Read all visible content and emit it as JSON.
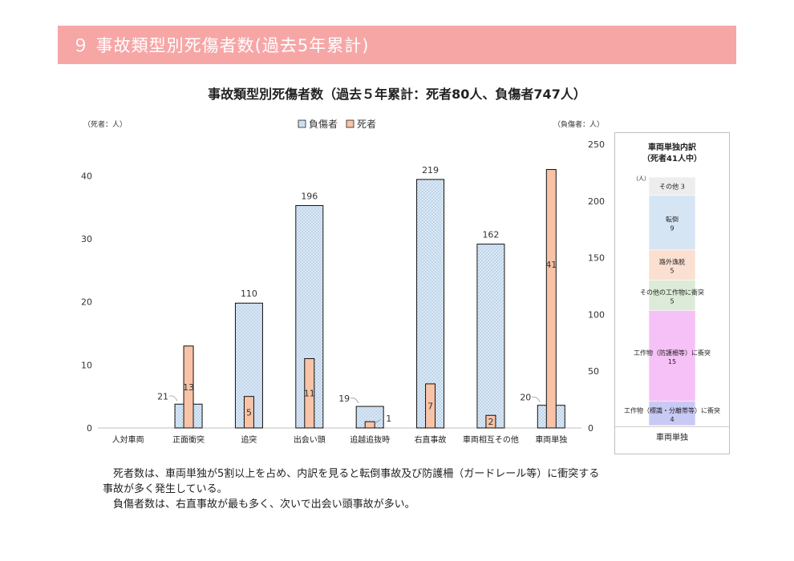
{
  "header": {
    "banner_title": "９ 事故類型別死傷者数(過去5年累計)"
  },
  "chart_data": [
    {
      "type": "bar",
      "title": "事故類型別死傷者数（過去５年累計：死者80人、負傷者747人）",
      "left_axis_unit": "（死者：人）",
      "right_axis_unit": "（負傷者：人）",
      "categories": [
        "人対車両",
        "正面衝突",
        "追突",
        "出会い頭",
        "追越追抜時",
        "右直事故",
        "車両相互その他",
        "車両単独"
      ],
      "series": [
        {
          "name": "負傷者",
          "axis": "right",
          "values": [
            null,
            21,
            110,
            196,
            19,
            219,
            162,
            20
          ],
          "color": "#dbeaf7"
        },
        {
          "name": "死者",
          "axis": "left",
          "values": [
            null,
            13,
            5,
            11,
            1,
            7,
            2,
            41
          ],
          "color": "#f8c3a6"
        }
      ],
      "left_ylim": [
        0,
        45
      ],
      "left_ticks": [
        0,
        10,
        20,
        30,
        40
      ],
      "right_ylim": [
        0,
        250
      ],
      "right_ticks": [
        0,
        50,
        100,
        150,
        200,
        250
      ],
      "legend_position": "top-center",
      "grid": false
    },
    {
      "type": "bar",
      "stacked": true,
      "title_line1": "車両単独内訳",
      "title_line2": "（死者41人中）",
      "unit": "（人）",
      "category": "車両単独",
      "segments": [
        {
          "label": "工作物（標識・分離帯等）に衝突",
          "value": 4,
          "color": "#c9c9f5"
        },
        {
          "label": "工作物（防護柵等）に衝突",
          "value": 15,
          "color": "#f6c1f6"
        },
        {
          "label": "その他の工作物に衝突",
          "value": 5,
          "color": "#dcebd7"
        },
        {
          "label": "路外逸脱",
          "value": 5,
          "color": "#fbe0d2"
        },
        {
          "label": "転倒",
          "value": 9,
          "color": "#d6e5f4"
        },
        {
          "label": "その他",
          "value": 3,
          "color": "#ededed"
        }
      ]
    }
  ],
  "description": {
    "line1": "死者数は、車両単独が5割以上を占め、内訳を見ると転倒事故及び防護柵（ガードレール等）に衝突する",
    "line2": "事故が多く発生している。",
    "line3": "負傷者数は、右直事故が最も多く、次いで出会い頭事故が多い。"
  }
}
